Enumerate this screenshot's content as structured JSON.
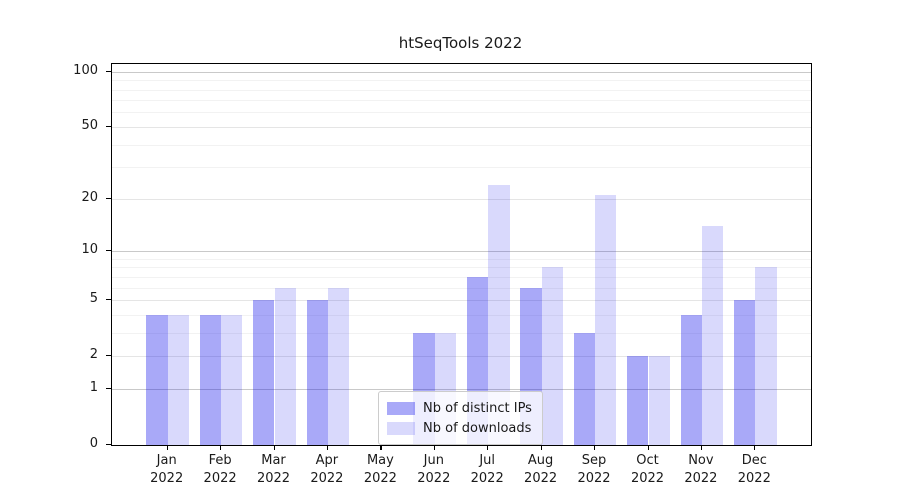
{
  "figure": {
    "title": "htSeqTools 2022"
  },
  "chart_data": {
    "type": "bar",
    "title": "htSeqTools 2022",
    "categories": [
      "Jan 2022",
      "Feb 2022",
      "Mar 2022",
      "Apr 2022",
      "May 2022",
      "Jun 2022",
      "Jul 2022",
      "Aug 2022",
      "Sep 2022",
      "Oct 2022",
      "Nov 2022",
      "Dec 2022"
    ],
    "series": [
      {
        "name": "Nb of distinct IPs",
        "color": "rgba(16,16,236,0.36)",
        "values": [
          4,
          4,
          5,
          5,
          0,
          3,
          7,
          6,
          3,
          2,
          4,
          5
        ]
      },
      {
        "name": "Nb of downloads",
        "color": "rgba(16,16,236,0.16)",
        "values": [
          4,
          4,
          6,
          6,
          0,
          3,
          24,
          8,
          21,
          2,
          14,
          8
        ]
      }
    ],
    "xlabel": "",
    "ylabel": "",
    "yscale": "log1p",
    "ylim": [
      0,
      110
    ],
    "yticks": [
      0,
      1,
      2,
      5,
      10,
      20,
      50,
      100
    ],
    "major_gridlines": [
      1,
      10,
      100
    ],
    "labeled_gridlines": [
      2,
      5,
      20,
      50
    ],
    "minor_gridlines": [
      3,
      4,
      6,
      7,
      8,
      9,
      30,
      40,
      60,
      70,
      80,
      90
    ],
    "grid": true,
    "legend_position": "lower center"
  }
}
